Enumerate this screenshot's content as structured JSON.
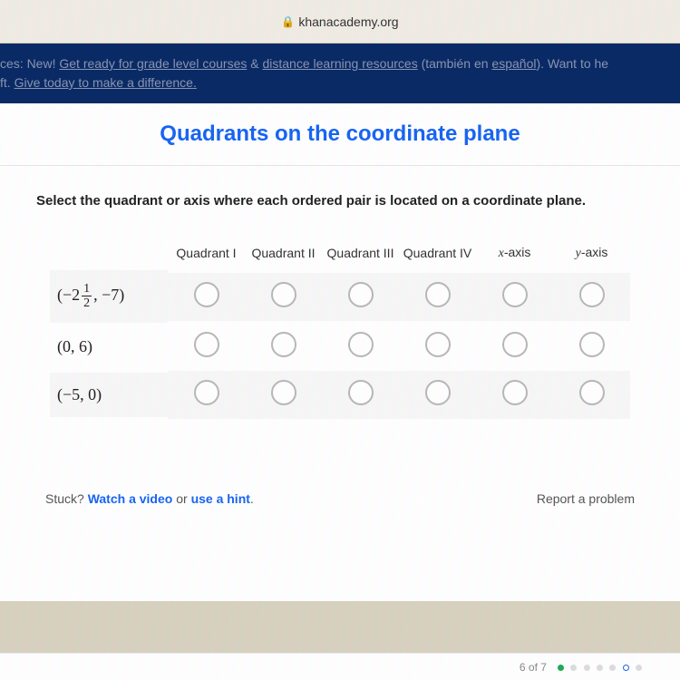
{
  "browser": {
    "url": "khanacademy.org"
  },
  "banner": {
    "text1": "ces: New! ",
    "link1": "Get ready for grade level courses",
    "text2": " & ",
    "link2": "distance learning resources",
    "text3": " (también en ",
    "link3": "español",
    "text4": "). Want to he",
    "line2a": "ft. ",
    "line2b": "Give today to make a difference."
  },
  "title": "Quadrants on the coordinate plane",
  "instruction": "Select the quadrant or axis where each ordered pair is located on a coordinate plane.",
  "columns": [
    "Quadrant I",
    "Quadrant II",
    "Quadrant III",
    "Quadrant IV"
  ],
  "axis_cols": {
    "x": "x-axis",
    "y": "y-axis"
  },
  "rows": [
    {
      "label_prefix": "(−2",
      "frac_num": "1",
      "frac_den": "2",
      "label_suffix": ", −7)",
      "has_frac": true,
      "shaded": true
    },
    {
      "label": "(0, 6)",
      "has_frac": false,
      "shaded": false
    },
    {
      "label": "(−5, 0)",
      "has_frac": false,
      "shaded": true
    }
  ],
  "footer": {
    "stuck": "Stuck? ",
    "watch": "Watch a video",
    "or": " or ",
    "hint": "use a hint",
    "period": ".",
    "report": "Report a problem"
  },
  "progress": {
    "text": "6 of 7"
  },
  "colors": {
    "title": "#1865f2",
    "banner_bg": "#0a2a66",
    "radio_border": "#b8b8b8"
  }
}
